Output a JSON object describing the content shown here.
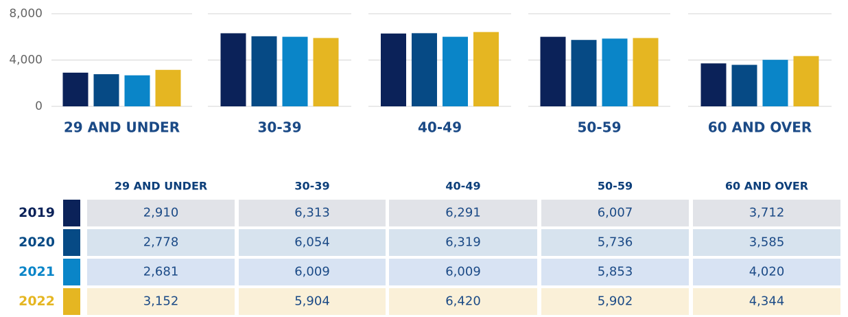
{
  "chart_data": {
    "type": "bar",
    "categories": [
      "29 AND UNDER",
      "30-39",
      "40-49",
      "50-59",
      "60 AND OVER"
    ],
    "series": [
      {
        "name": "2019",
        "color": "#0b2259",
        "values": [
          2910,
          6313,
          6291,
          6007,
          3712
        ],
        "value_labels": [
          "2,910",
          "6,313",
          "6,291",
          "6,007",
          "3,712"
        ]
      },
      {
        "name": "2020",
        "color": "#064a85",
        "values": [
          2778,
          6054,
          6319,
          5736,
          3585
        ],
        "value_labels": [
          "2,778",
          "6,054",
          "6,319",
          "5,736",
          "3,585"
        ]
      },
      {
        "name": "2021",
        "color": "#0a85c8",
        "values": [
          2681,
          6009,
          6009,
          5853,
          4020
        ],
        "value_labels": [
          "2,681",
          "6,009",
          "6,009",
          "5,853",
          "4,020"
        ]
      },
      {
        "name": "2022",
        "color": "#e5b622",
        "values": [
          3152,
          5904,
          6420,
          5902,
          4344
        ],
        "value_labels": [
          "3,152",
          "5,904",
          "6,420",
          "5,902",
          "4,344"
        ]
      }
    ],
    "ylim": [
      0,
      8000
    ],
    "yticks": [
      0,
      {
        "value": 4000,
        "label": "4,000"
      },
      {
        "value": 8000,
        "label": "8,000"
      }
    ],
    "grid": true
  }
}
